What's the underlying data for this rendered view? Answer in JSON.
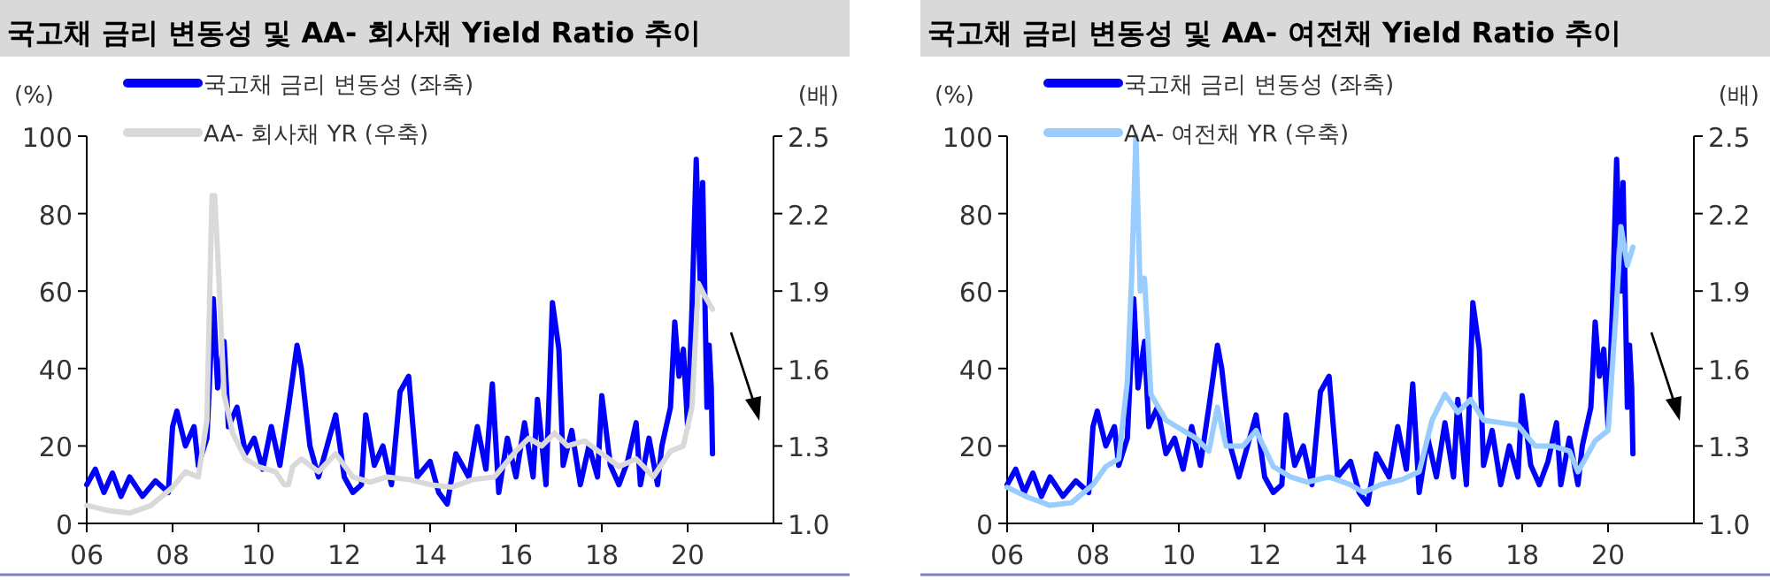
{
  "chart_data": [
    {
      "type": "line",
      "title": "국고채 금리 변동성 및 AA- 회사채 Yield Ratio 추이",
      "ylabel": "(%)",
      "y2label": "(배)",
      "legend": "top left",
      "xlim": [
        2006,
        2022
      ],
      "xticks": [
        {
          "value": 2006,
          "label": "06"
        },
        {
          "value": 2008,
          "label": "08"
        },
        {
          "value": 2010,
          "label": "10"
        },
        {
          "value": 2012,
          "label": "12"
        },
        {
          "value": 2014,
          "label": "14"
        },
        {
          "value": 2016,
          "label": "16"
        },
        {
          "value": 2018,
          "label": "18"
        },
        {
          "value": 2020,
          "label": "20"
        }
      ],
      "ylim": [
        0,
        100
      ],
      "yticks": [
        0,
        20,
        40,
        60,
        80,
        100
      ],
      "y2lim": [
        1.0,
        2.5
      ],
      "y2ticks": [
        {
          "value": 1,
          "label": "1.0"
        },
        1.3,
        1.6,
        1.9,
        2.2,
        2.5
      ],
      "series": [
        {
          "name": "국고채 금리 변동성 (좌축)",
          "color": "#0000ff",
          "x": [
            2006.0,
            2006.2,
            2006.4,
            2006.6,
            2006.8,
            2007.0,
            2007.3,
            2007.6,
            2007.9,
            2008.0,
            2008.1,
            2008.3,
            2008.5,
            2008.6,
            2008.8,
            2008.95,
            2009.05,
            2009.2,
            2009.3,
            2009.5,
            2009.7,
            2009.9,
            2010.1,
            2010.3,
            2010.5,
            2010.7,
            2010.9,
            2011.0,
            2011.2,
            2011.4,
            2011.6,
            2011.8,
            2012.0,
            2012.2,
            2012.4,
            2012.5,
            2012.7,
            2012.9,
            2013.1,
            2013.3,
            2013.5,
            2013.7,
            2014.0,
            2014.2,
            2014.4,
            2014.6,
            2014.9,
            2015.1,
            2015.3,
            2015.45,
            2015.6,
            2015.8,
            2016.0,
            2016.2,
            2016.4,
            2016.5,
            2016.7,
            2016.85,
            2017.0,
            2017.1,
            2017.3,
            2017.5,
            2017.7,
            2017.9,
            2018.0,
            2018.2,
            2018.4,
            2018.6,
            2018.8,
            2018.9,
            2019.1,
            2019.3,
            2019.4,
            2019.6,
            2019.7,
            2019.8,
            2019.9,
            2020.0,
            2020.1,
            2020.2,
            2020.3,
            2020.35,
            2020.45,
            2020.5,
            2020.55,
            2020.58
          ],
          "values": [
            10,
            14,
            8,
            13,
            7,
            12,
            7,
            11,
            8,
            25,
            29,
            20,
            25,
            15,
            22,
            58,
            35,
            47,
            25,
            30,
            18,
            22,
            14,
            25,
            15,
            30,
            46,
            40,
            20,
            12,
            20,
            28,
            12,
            8,
            10,
            28,
            15,
            20,
            10,
            34,
            38,
            12,
            16,
            8,
            5,
            18,
            12,
            25,
            14,
            36,
            8,
            22,
            12,
            26,
            12,
            32,
            10,
            57,
            45,
            15,
            24,
            10,
            20,
            12,
            33,
            15,
            10,
            16,
            26,
            10,
            22,
            10,
            20,
            30,
            52,
            38,
            45,
            25,
            55,
            94,
            60,
            88,
            30,
            46,
            35,
            18
          ]
        },
        {
          "name": "AA- 회사채 YR (우축)",
          "color": "#d9d9d9",
          "axis": "y2",
          "x": [
            2006,
            2006.5,
            2007,
            2007.5,
            2008,
            2008.3,
            2008.6,
            2008.8,
            2008.88,
            2008.92,
            2008.95,
            2008.98,
            2009.05,
            2009.2,
            2009.4,
            2009.7,
            2010,
            2010.4,
            2010.6,
            2010.7,
            2010.8,
            2011.0,
            2011.4,
            2011.8,
            2012.2,
            2012.6,
            2013,
            2013.5,
            2014,
            2014.5,
            2015,
            2015.5,
            2016,
            2016.3,
            2016.6,
            2016.9,
            2017.2,
            2017.6,
            2018,
            2018.4,
            2018.8,
            2019.2,
            2019.6,
            2019.9,
            2020.1,
            2020.25,
            2020.4,
            2020.58
          ],
          "values": [
            1.07,
            1.05,
            1.04,
            1.07,
            1.14,
            1.2,
            1.18,
            1.4,
            2.0,
            2.27,
            2.27,
            2.27,
            2.05,
            1.5,
            1.35,
            1.25,
            1.22,
            1.2,
            1.15,
            1.15,
            1.22,
            1.25,
            1.2,
            1.27,
            1.18,
            1.16,
            1.18,
            1.17,
            1.15,
            1.14,
            1.17,
            1.18,
            1.28,
            1.33,
            1.3,
            1.35,
            1.3,
            1.32,
            1.27,
            1.22,
            1.25,
            1.18,
            1.28,
            1.3,
            1.45,
            1.93,
            1.88,
            1.83
          ]
        }
      ]
    },
    {
      "type": "line",
      "title": "국고채 금리 변동성 및 AA- 여전채 Yield Ratio 추이",
      "ylabel": "(%)",
      "y2label": "(배)",
      "legend": "top left",
      "xlim": [
        2006,
        2022
      ],
      "xticks": [
        {
          "value": 2006,
          "label": "06"
        },
        {
          "value": 2008,
          "label": "08"
        },
        {
          "value": 2010,
          "label": "10"
        },
        {
          "value": 2012,
          "label": "12"
        },
        {
          "value": 2014,
          "label": "14"
        },
        {
          "value": 2016,
          "label": "16"
        },
        {
          "value": 2018,
          "label": "18"
        },
        {
          "value": 2020,
          "label": "20"
        }
      ],
      "ylim": [
        0,
        100
      ],
      "yticks": [
        0,
        20,
        40,
        60,
        80,
        100
      ],
      "y2lim": [
        1.0,
        2.5
      ],
      "y2ticks": [
        {
          "value": 1,
          "label": "1.0"
        },
        1.3,
        1.6,
        1.9,
        2.2,
        2.5
      ],
      "series": [
        {
          "name": "국고채 금리 변동성 (좌축)",
          "color": "#0000ff",
          "x": [
            2006.0,
            2006.2,
            2006.4,
            2006.6,
            2006.8,
            2007.0,
            2007.3,
            2007.6,
            2007.9,
            2008.0,
            2008.1,
            2008.3,
            2008.5,
            2008.6,
            2008.8,
            2008.95,
            2009.05,
            2009.2,
            2009.3,
            2009.5,
            2009.7,
            2009.9,
            2010.1,
            2010.3,
            2010.5,
            2010.7,
            2010.9,
            2011.0,
            2011.2,
            2011.4,
            2011.6,
            2011.8,
            2012.0,
            2012.2,
            2012.4,
            2012.5,
            2012.7,
            2012.9,
            2013.1,
            2013.3,
            2013.5,
            2013.7,
            2014.0,
            2014.2,
            2014.4,
            2014.6,
            2014.9,
            2015.1,
            2015.3,
            2015.45,
            2015.6,
            2015.8,
            2016.0,
            2016.2,
            2016.4,
            2016.5,
            2016.7,
            2016.85,
            2017.0,
            2017.1,
            2017.3,
            2017.5,
            2017.7,
            2017.9,
            2018.0,
            2018.2,
            2018.4,
            2018.6,
            2018.8,
            2018.9,
            2019.1,
            2019.3,
            2019.4,
            2019.6,
            2019.7,
            2019.8,
            2019.9,
            2020.0,
            2020.1,
            2020.2,
            2020.3,
            2020.35,
            2020.45,
            2020.5,
            2020.55,
            2020.58
          ],
          "values": [
            10,
            14,
            8,
            13,
            7,
            12,
            7,
            11,
            8,
            25,
            29,
            20,
            25,
            15,
            22,
            58,
            35,
            47,
            25,
            30,
            18,
            22,
            14,
            25,
            15,
            30,
            46,
            40,
            20,
            12,
            20,
            28,
            12,
            8,
            10,
            28,
            15,
            20,
            10,
            34,
            38,
            12,
            16,
            8,
            5,
            18,
            12,
            25,
            14,
            36,
            8,
            22,
            12,
            26,
            12,
            32,
            10,
            57,
            45,
            15,
            24,
            10,
            20,
            12,
            33,
            15,
            10,
            16,
            26,
            10,
            22,
            10,
            20,
            30,
            52,
            38,
            45,
            25,
            55,
            94,
            60,
            88,
            30,
            46,
            35,
            18
          ]
        },
        {
          "name": "AA- 여전채 YR (우축)",
          "color": "#99ccff",
          "axis": "y2",
          "x": [
            2006,
            2006.5,
            2007,
            2007.5,
            2008,
            2008.3,
            2008.6,
            2008.8,
            2008.9,
            2009.0,
            2009.1,
            2009.2,
            2009.35,
            2009.7,
            2010,
            2010.4,
            2010.7,
            2010.9,
            2011.1,
            2011.5,
            2011.8,
            2012.2,
            2012.6,
            2013,
            2013.5,
            2014,
            2014.3,
            2014.7,
            2015.2,
            2015.6,
            2015.9,
            2016.2,
            2016.5,
            2016.8,
            2017.1,
            2017.5,
            2017.9,
            2018.3,
            2018.7,
            2019.1,
            2019.3,
            2019.7,
            2020.0,
            2020.2,
            2020.3,
            2020.45,
            2020.58
          ],
          "values": [
            1.14,
            1.1,
            1.07,
            1.08,
            1.15,
            1.22,
            1.25,
            1.55,
            1.95,
            2.5,
            1.9,
            1.95,
            1.5,
            1.4,
            1.37,
            1.33,
            1.28,
            1.45,
            1.3,
            1.3,
            1.36,
            1.22,
            1.18,
            1.16,
            1.18,
            1.15,
            1.12,
            1.15,
            1.17,
            1.2,
            1.4,
            1.5,
            1.43,
            1.48,
            1.4,
            1.39,
            1.38,
            1.3,
            1.3,
            1.28,
            1.2,
            1.32,
            1.36,
            1.85,
            2.15,
            2.0,
            2.07
          ]
        }
      ]
    }
  ]
}
